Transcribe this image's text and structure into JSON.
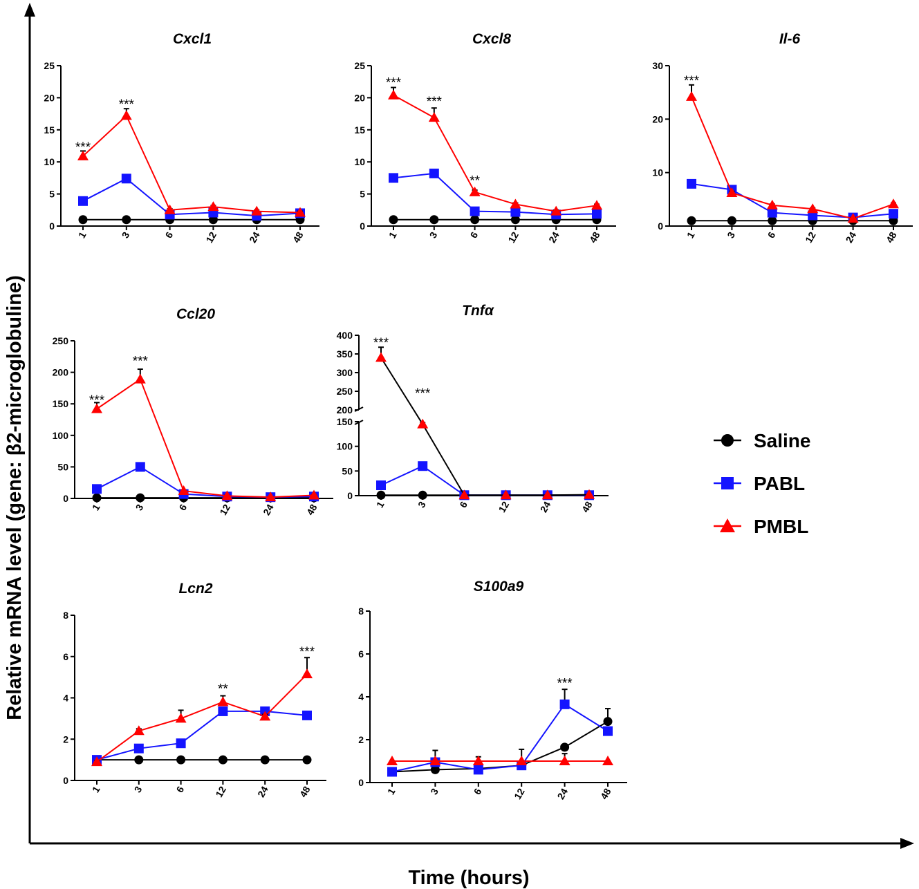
{
  "figure": {
    "x_axis_label": "Time (hours)",
    "y_axis_label": "Relative mRNA level (gene: β2-microglobuline)"
  },
  "legend": [
    {
      "name": "Saline",
      "color": "#000000",
      "marker": "circle"
    },
    {
      "name": "PABL",
      "color": "#1414ff",
      "marker": "square"
    },
    {
      "name": "PMBL",
      "color": "#ff0000",
      "marker": "triangle"
    }
  ],
  "chart_data": [
    {
      "type": "line",
      "title_main": "Cxcl1",
      "title_sub": "",
      "categories": [
        "1",
        "3",
        "6",
        "12",
        "24",
        "48"
      ],
      "ylim": [
        0,
        25
      ],
      "yticks": [
        "0",
        "5",
        "10",
        "15",
        "20",
        "25"
      ],
      "series": [
        {
          "name": "Saline",
          "values": [
            1,
            1,
            1,
            1,
            1,
            1
          ],
          "errors": [
            0,
            0,
            0,
            0,
            0,
            0
          ]
        },
        {
          "name": "PABL",
          "values": [
            3.9,
            7.4,
            1.8,
            2.1,
            1.6,
            2.0
          ],
          "errors": [
            0.2,
            0.3,
            0.2,
            0.2,
            0.2,
            0.2
          ]
        },
        {
          "name": "PMBL",
          "values": [
            10.9,
            17.2,
            2.5,
            3.0,
            2.3,
            2.1
          ],
          "errors": [
            0.8,
            1.1,
            0.2,
            0.2,
            0.2,
            0.2
          ]
        }
      ],
      "annotations": [
        {
          "cat": 0,
          "text": "***",
          "value": 12.5
        },
        {
          "cat": 1,
          "text": "***",
          "value": 19.2
        }
      ]
    },
    {
      "type": "line",
      "title_main": "Cxcl8",
      "title_sub": "",
      "categories": [
        "1",
        "3",
        "6",
        "12",
        "24",
        "48"
      ],
      "ylim": [
        0,
        25
      ],
      "yticks": [
        "0",
        "5",
        "10",
        "15",
        "20",
        "25"
      ],
      "series": [
        {
          "name": "Saline",
          "values": [
            1,
            1,
            1,
            1,
            1,
            1
          ],
          "errors": [
            0,
            0,
            0,
            0,
            0,
            0
          ]
        },
        {
          "name": "PABL",
          "values": [
            7.5,
            8.2,
            2.3,
            2.2,
            1.8,
            1.9
          ],
          "errors": [
            0.6,
            0.3,
            0.2,
            0.2,
            0.2,
            0.2
          ]
        },
        {
          "name": "PMBL",
          "values": [
            20.4,
            16.9,
            5.3,
            3.4,
            2.3,
            3.2
          ],
          "errors": [
            1.2,
            1.5,
            0.3,
            0.2,
            0.2,
            0.2
          ]
        }
      ],
      "annotations": [
        {
          "cat": 0,
          "text": "***",
          "value": 22.6
        },
        {
          "cat": 1,
          "text": "***",
          "value": 19.6
        },
        {
          "cat": 2,
          "text": "**",
          "value": 7.3
        }
      ]
    },
    {
      "type": "line",
      "title_main": "Il-6",
      "title_sub": "",
      "categories": [
        "1",
        "3",
        "6",
        "12",
        "24",
        "48"
      ],
      "ylim": [
        0,
        30
      ],
      "yticks": [
        "0",
        "10",
        "20",
        "30"
      ],
      "series": [
        {
          "name": "Saline",
          "values": [
            1,
            1,
            1,
            1,
            1,
            1
          ],
          "errors": [
            0,
            0,
            0,
            0,
            0,
            0
          ]
        },
        {
          "name": "PABL",
          "values": [
            7.9,
            6.8,
            2.5,
            2.0,
            1.6,
            2.3
          ],
          "errors": [
            0.3,
            0.3,
            0.2,
            0.2,
            0.2,
            0.2
          ]
        },
        {
          "name": "PMBL",
          "values": [
            24.2,
            6.2,
            3.9,
            3.2,
            1.4,
            4.1
          ],
          "errors": [
            2.2,
            0.3,
            0.2,
            0.2,
            0.2,
            0.2
          ]
        }
      ],
      "annotations": [
        {
          "cat": 0,
          "text": "***",
          "value": 27.4
        }
      ]
    },
    {
      "type": "line",
      "title_main": "Ccl20",
      "title_sub": "",
      "categories": [
        "1",
        "3",
        "6",
        "12",
        "24",
        "48"
      ],
      "ylim": [
        0,
        250
      ],
      "yticks": [
        "0",
        "50",
        "100",
        "150",
        "200",
        "250"
      ],
      "series": [
        {
          "name": "Saline",
          "values": [
            1,
            1,
            1,
            1,
            1,
            1
          ],
          "errors": [
            0,
            0,
            0,
            0,
            0,
            0
          ]
        },
        {
          "name": "PABL",
          "values": [
            15,
            50,
            7,
            3,
            2,
            3
          ],
          "errors": [
            1,
            2,
            1,
            1,
            1,
            1
          ]
        },
        {
          "name": "PMBL",
          "values": [
            142,
            189,
            12,
            4,
            2,
            5
          ],
          "errors": [
            10,
            16,
            1,
            1,
            1,
            1
          ]
        }
      ],
      "annotations": [
        {
          "cat": 0,
          "text": "***",
          "value": 158
        },
        {
          "cat": 1,
          "text": "***",
          "value": 220
        }
      ]
    },
    {
      "type": "line",
      "title_main": "Tnf",
      "title_sub": "α",
      "categories": [
        "1",
        "3",
        "6",
        "12",
        "24",
        "48"
      ],
      "broken_axis": true,
      "lower_range": [
        0,
        150
      ],
      "upper_range": [
        200,
        400
      ],
      "yticks_lower": [
        "0",
        "50",
        "100",
        "150"
      ],
      "yticks_upper": [
        "200",
        "250",
        "300",
        "350",
        "400"
      ],
      "series": [
        {
          "name": "Saline",
          "values": [
            1,
            1,
            1,
            1,
            1,
            1
          ],
          "errors": [
            0,
            0,
            0,
            0,
            0,
            0
          ]
        },
        {
          "name": "PABL",
          "values": [
            21,
            60,
            1,
            1,
            1,
            1
          ],
          "errors": [
            1,
            2,
            0,
            0,
            0,
            0
          ]
        },
        {
          "name": "PMBL",
          "values": [
            340,
            145,
            1,
            1,
            1,
            2
          ],
          "errors": [
            28,
            3,
            0,
            0,
            0,
            0
          ]
        }
      ],
      "annotations": [
        {
          "cat": 0,
          "text": "***",
          "value": 383
        },
        {
          "cat": 1,
          "text": "***",
          "value": 248
        }
      ]
    },
    {
      "type": "line",
      "title_main": "Lcn2",
      "title_sub": "",
      "categories": [
        "1",
        "3",
        "6",
        "12",
        "24",
        "48"
      ],
      "ylim": [
        0,
        8
      ],
      "yticks": [
        "0",
        "2",
        "4",
        "6",
        "8"
      ],
      "series": [
        {
          "name": "Saline",
          "values": [
            1,
            1,
            1,
            1,
            1,
            1
          ],
          "errors": [
            0,
            0,
            0,
            0,
            0,
            0
          ]
        },
        {
          "name": "PABL",
          "values": [
            1.0,
            1.55,
            1.8,
            3.35,
            3.35,
            3.15
          ],
          "errors": [
            0.05,
            0.1,
            0.1,
            0.1,
            0.1,
            0.1
          ]
        },
        {
          "name": "PMBL",
          "values": [
            0.9,
            2.4,
            3.0,
            3.8,
            3.1,
            5.15
          ],
          "errors": [
            0.05,
            0.1,
            0.4,
            0.3,
            0.1,
            0.8
          ]
        }
      ],
      "annotations": [
        {
          "cat": 3,
          "text": "**",
          "value": 4.5
        },
        {
          "cat": 5,
          "text": "***",
          "value": 6.3
        }
      ]
    },
    {
      "type": "line",
      "title_main": "S100a9",
      "title_sub": "",
      "categories": [
        "1",
        "3",
        "6",
        "12",
        "24",
        "48"
      ],
      "ylim": [
        0,
        8
      ],
      "yticks": [
        "0",
        "2",
        "4",
        "6",
        "8"
      ],
      "series": [
        {
          "name": "Saline",
          "values": [
            0.5,
            0.6,
            0.65,
            0.8,
            1.65,
            2.85
          ],
          "errors": [
            0.05,
            0.05,
            0.05,
            0.1,
            0.1,
            0.6
          ]
        },
        {
          "name": "PABL",
          "values": [
            0.5,
            0.95,
            0.6,
            0.8,
            3.65,
            2.4
          ],
          "errors": [
            0.05,
            0.55,
            0.6,
            0.75,
            0.7,
            0.1
          ]
        },
        {
          "name": "PMBL",
          "values": [
            1.0,
            1.0,
            1.0,
            1.0,
            1.0,
            1.0
          ],
          "errors": [
            0,
            0,
            0,
            0,
            0.35,
            0
          ]
        }
      ],
      "annotations": [
        {
          "cat": 4,
          "text": "***",
          "value": 4.7
        }
      ]
    }
  ]
}
